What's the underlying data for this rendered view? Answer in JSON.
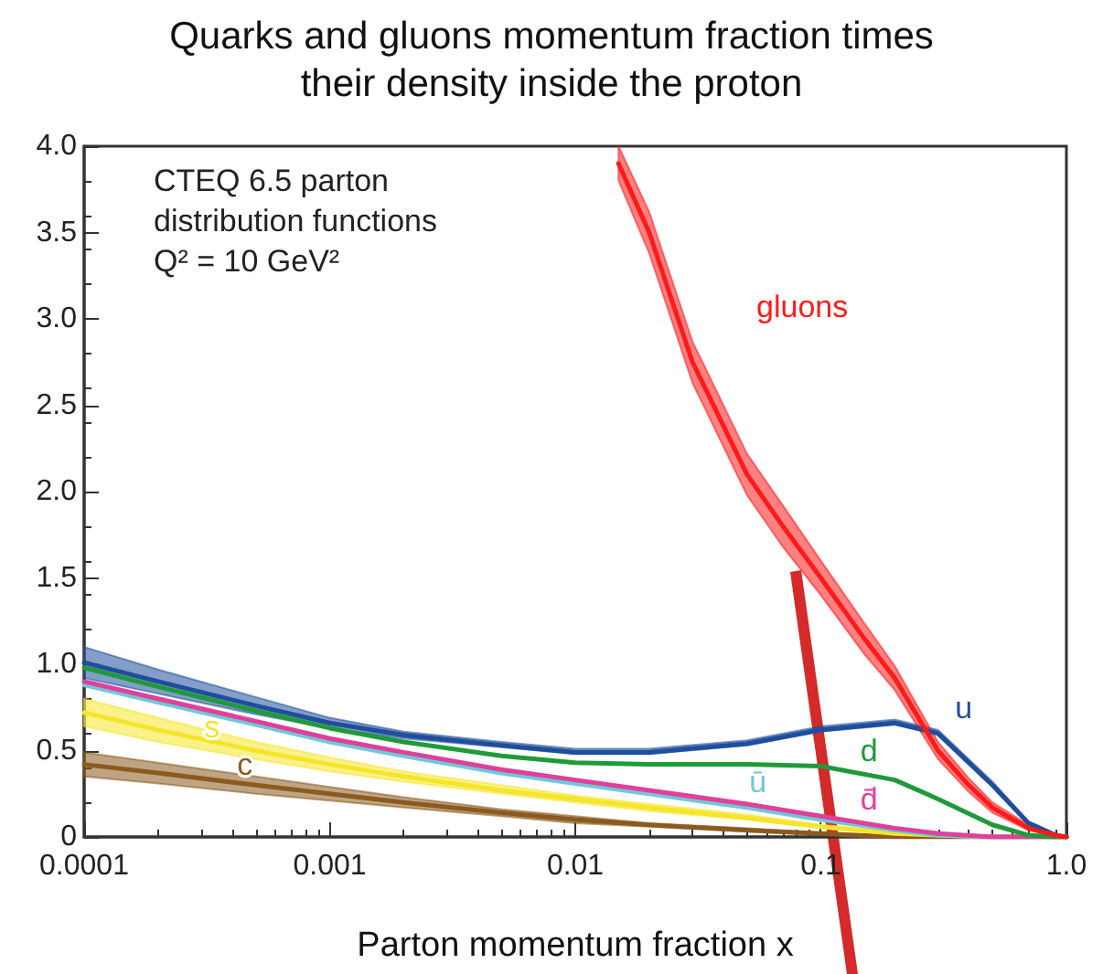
{
  "chart_data": {
    "type": "line",
    "title": "Quarks and gluons momentum fraction times\ntheir density inside the proton",
    "xlabel": "Parton momentum fraction x",
    "x": [
      0.0001,
      0.0002,
      0.0005,
      0.001,
      0.002,
      0.005,
      0.01,
      0.02,
      0.05,
      0.1,
      0.2,
      0.3,
      0.5,
      0.7,
      0.9,
      1.0
    ],
    "series": [
      {
        "color": "#8b5a1e",
        "values": [
          0.42,
          0.37,
          0.3,
          0.25,
          0.2,
          0.14,
          0.1,
          0.07,
          0.04,
          0.02,
          0,
          0,
          0,
          0,
          0,
          0
        ],
        "lower": [
          0.35,
          0.31,
          0.25,
          0.21,
          0.17,
          0.12,
          0.08,
          0.06,
          0.03,
          0.01,
          0,
          0,
          0,
          0,
          0,
          0
        ],
        "upper": [
          0.49,
          0.43,
          0.35,
          0.29,
          0.23,
          0.16,
          0.12,
          0.08,
          0.05,
          0.02,
          0.01,
          0,
          0,
          0,
          0,
          0
        ]
      },
      {
        "color": "#f5e52a",
        "values": [
          0.72,
          0.62,
          0.5,
          0.42,
          0.35,
          0.27,
          0.22,
          0.17,
          0.11,
          0.06,
          0.02,
          0.01,
          0,
          null,
          null,
          null
        ],
        "lower": [
          0.64,
          0.55,
          0.45,
          0.38,
          0.32,
          0.25,
          0.2,
          0.15,
          0.1,
          0.05,
          0.02,
          0.01,
          0,
          0,
          0,
          0
        ],
        "upper": [
          0.8,
          0.69,
          0.55,
          0.46,
          0.38,
          0.3,
          0.24,
          0.19,
          0.13,
          0.07,
          0.03,
          0.01,
          0,
          0,
          0,
          0
        ]
      },
      {
        "color": "#6fc8d8",
        "values": [
          0.88,
          0.78,
          0.65,
          0.55,
          0.47,
          0.37,
          0.31,
          0.25,
          0.17,
          0.1,
          0.04,
          0.01,
          0,
          0,
          null,
          null
        ]
      },
      {
        "color": "#e0409a",
        "values": [
          0.9,
          0.8,
          0.67,
          0.57,
          0.49,
          0.39,
          0.33,
          0.27,
          0.19,
          0.12,
          0.05,
          0.02,
          0,
          0,
          0,
          0
        ]
      },
      {
        "color": "#1f9a3a",
        "values": [
          0.98,
          0.87,
          0.73,
          0.63,
          0.55,
          0.47,
          0.43,
          0.42,
          0.42,
          0.41,
          0.33,
          0.22,
          0.07,
          0.01,
          0,
          0
        ]
      },
      {
        "color": "#1f4e9c",
        "values": [
          1.01,
          0.9,
          0.76,
          0.66,
          0.59,
          0.53,
          0.49,
          0.49,
          0.54,
          0.62,
          0.66,
          0.6,
          0.3,
          0.08,
          0.01,
          0
        ],
        "lower": [
          0.92,
          0.83,
          0.71,
          0.63,
          0.57,
          0.52,
          0.48,
          0.48,
          0.53,
          0.61,
          0.65,
          0.59,
          0.29,
          0.07,
          0.01,
          0
        ],
        "upper": [
          1.1,
          0.97,
          0.81,
          0.69,
          0.61,
          0.55,
          0.51,
          0.51,
          0.56,
          0.64,
          0.68,
          0.62,
          0.32,
          0.09,
          0.02,
          0
        ]
      },
      {
        "color": "#ff1a1a",
        "x": [
          0.015,
          0.02,
          0.03,
          0.05,
          0.07,
          0.1,
          0.15,
          0.2,
          0.3,
          0.4,
          0.5,
          0.7,
          0.9,
          1.0
        ],
        "values": [
          3.9,
          3.5,
          2.75,
          2.1,
          1.8,
          1.5,
          1.15,
          0.92,
          0.5,
          0.3,
          0.17,
          0.05,
          0.01,
          0
        ],
        "lower": [
          3.8,
          3.38,
          2.63,
          1.98,
          1.68,
          1.4,
          1.06,
          0.85,
          0.45,
          0.26,
          0.14,
          0.04,
          0.01,
          0
        ],
        "upper": [
          4.0,
          3.62,
          2.87,
          2.22,
          1.92,
          1.6,
          1.24,
          0.99,
          0.55,
          0.34,
          0.2,
          0.07,
          0.02,
          0
        ]
      }
    ],
    "annotations": [
      {
        "text": "c",
        "x": 0.0005,
        "y": 0.3
      },
      {
        "text": "s",
        "x": 0.0005,
        "y": 0.5
      },
      {
        "text": "ū",
        "x": 0.05,
        "y": 0.17
      },
      {
        "text": "d̄",
        "x": 0.2,
        "y": 0.05
      },
      {
        "text": "d",
        "x": 0.2,
        "y": 0.33
      },
      {
        "text": "u",
        "x": 0.3,
        "y": 0.6
      },
      {
        "text": "gluons",
        "x": 0.03,
        "y": 2.75
      },
      "CTEQ 6.5 parton\ndistribution functions\nQ² = 10 GeV²"
    ],
    "xlim": [
      0.0001,
      1.0
    ],
    "ylim": [
      0,
      4.0
    ],
    "log": "x",
    "xticks": [
      0.0001,
      0.001,
      0.01,
      0.1,
      {
        "value": 1.0,
        "label": "1.0"
      }
    ],
    "yticks": [
      0,
      0.5,
      {
        "value": 1.0,
        "label": "1.0"
      },
      1.5,
      {
        "value": 2.0,
        "label": "2.0"
      },
      2.5,
      {
        "value": 3.0,
        "label": "3.0"
      },
      3.5,
      {
        "value": 4.0,
        "label": "4.0"
      }
    ],
    "grid": false,
    "marker": "none",
    "line_style": "solid"
  }
}
